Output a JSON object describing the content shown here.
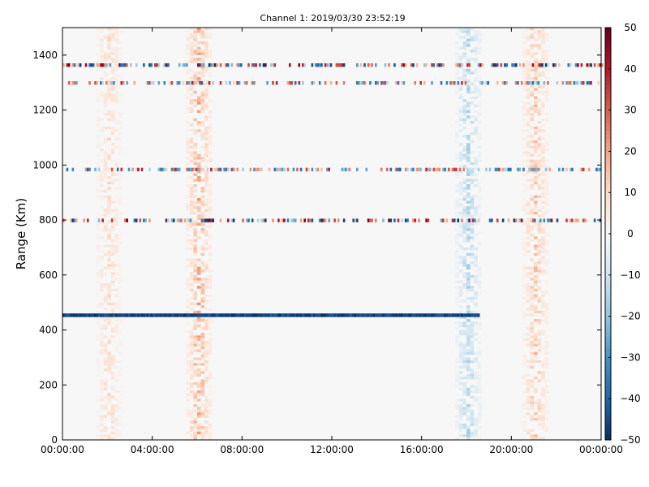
{
  "chart_data": {
    "type": "heatmap",
    "title": "Channel 1: 2019/03/30 23:52:19",
    "ylabel": "Range (Km)",
    "xlabel": "",
    "x_ticks": [
      "00:00:00",
      "04:00:00",
      "08:00:00",
      "12:00:00",
      "16:00:00",
      "20:00:00",
      "00:00:00"
    ],
    "ylim": [
      0,
      1500
    ],
    "y_ticks": [
      0,
      200,
      400,
      600,
      800,
      1000,
      1200,
      1400
    ],
    "colorbar": {
      "colormap": "RdBu_r",
      "range": [
        -50,
        50
      ],
      "ticks": [
        50,
        40,
        30,
        20,
        10,
        0,
        -10,
        -20,
        -30,
        -40,
        -50
      ],
      "colors": {
        "low": "#053061",
        "mid": "#f7f7f7",
        "high": "#67001f"
      }
    },
    "background_value": 0,
    "features": [
      {
        "label": "strong negative band",
        "range_km": 455,
        "time_from": "00:00:00",
        "time_to": "18:30:00",
        "value": -50
      },
      {
        "label": "mixed speckle band",
        "range_km": 1365,
        "time_from": "00:00:00",
        "time_to": "24:00:00",
        "value": "±50"
      },
      {
        "label": "speckle band",
        "range_km": 1300,
        "time_from": "00:00:00",
        "time_to": "24:00:00",
        "value": "±40"
      },
      {
        "label": "speckle band",
        "range_km": 985,
        "time_from": "00:00:00",
        "time_to": "24:00:00",
        "value": "±40"
      },
      {
        "label": "speckle band",
        "range_km": 800,
        "time_from": "00:00:00",
        "time_to": "24:00:00",
        "value": "±50"
      },
      {
        "label": "positive stripe",
        "time": "02:00:00",
        "value": 8
      },
      {
        "label": "positive stripe",
        "time": "06:00:00",
        "value": 15
      },
      {
        "label": "negative stripe",
        "time": "18:00:00",
        "value": -12
      },
      {
        "label": "positive stripe",
        "time": "21:00:00",
        "value": 12
      }
    ]
  }
}
